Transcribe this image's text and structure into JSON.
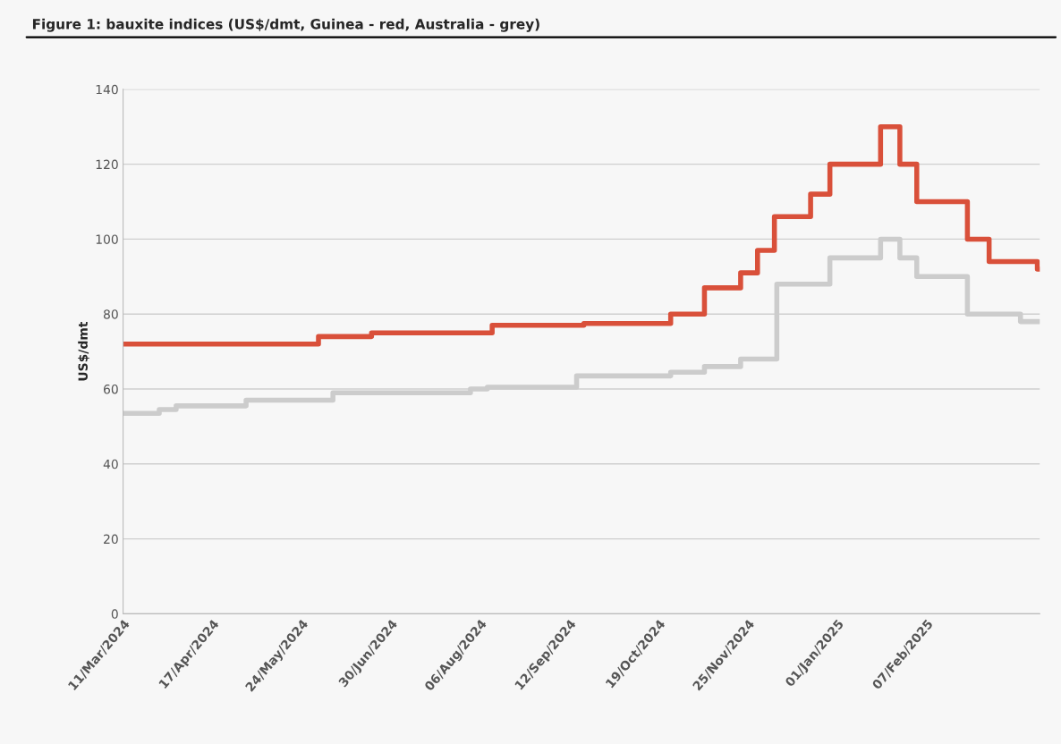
{
  "chart_data": {
    "type": "step",
    "title": "Figure 1: bauxite indices (US$/dmt, Guinea - red, Australia - grey)",
    "ylabel": "US$/dmt",
    "series": [
      {
        "color": "#d9503a",
        "x": [
          "2024-03-11",
          "2024-05-31",
          "2024-06-22",
          "2024-08-11",
          "2024-09-18",
          "2024-10-24",
          "2024-11-07",
          "2024-11-22",
          "2024-11-29",
          "2024-12-06",
          "2024-12-21",
          "2024-12-29",
          "2025-01-19",
          "2025-01-27",
          "2025-02-03",
          "2025-02-24",
          "2025-03-05",
          "2025-03-25",
          "2025-03-26"
        ],
        "values": [
          72,
          74,
          75,
          77,
          77.5,
          80,
          87,
          91,
          97,
          106,
          112,
          120,
          130,
          120,
          110,
          100,
          94,
          92,
          92
        ]
      },
      {
        "color": "#cccccc",
        "x": [
          "2024-03-11",
          "2024-03-26",
          "2024-04-02",
          "2024-05-01",
          "2024-06-06",
          "2024-08-02",
          "2024-08-09",
          "2024-09-15",
          "2024-10-24",
          "2024-11-07",
          "2024-11-22",
          "2024-12-07",
          "2024-12-29",
          "2025-01-19",
          "2025-01-27",
          "2025-02-03",
          "2025-02-24",
          "2025-03-18",
          "2025-03-26"
        ],
        "values": [
          53.5,
          54.5,
          55.5,
          57,
          59,
          60,
          60.5,
          63.5,
          64.5,
          66,
          68,
          88,
          95,
          100,
          95,
          90,
          80,
          78,
          78
        ]
      }
    ],
    "xlim": [
      "2024-03-11",
      "2025-03-26"
    ],
    "xticks": [
      {
        "value": "2024-03-11",
        "label": "11/Mar/2024"
      },
      {
        "value": "2024-04-17",
        "label": "17/Apr/2024"
      },
      {
        "value": "2024-05-24",
        "label": "24/May/2024"
      },
      {
        "value": "2024-06-30",
        "label": "30/Jun/2024"
      },
      {
        "value": "2024-08-06",
        "label": "06/Aug/2024"
      },
      {
        "value": "2024-09-12",
        "label": "12/Sep/2024"
      },
      {
        "value": "2024-10-19",
        "label": "19/Oct/2024"
      },
      {
        "value": "2024-11-25",
        "label": "25/Nov/2024"
      },
      {
        "value": "2025-01-01",
        "label": "01/Jan/2025"
      },
      {
        "value": "2025-02-07",
        "label": "07/Feb/2025"
      }
    ],
    "ylim": [
      0,
      140
    ],
    "yticks": [
      0,
      20,
      40,
      60,
      80,
      100,
      120,
      140
    ],
    "grid": "y"
  }
}
